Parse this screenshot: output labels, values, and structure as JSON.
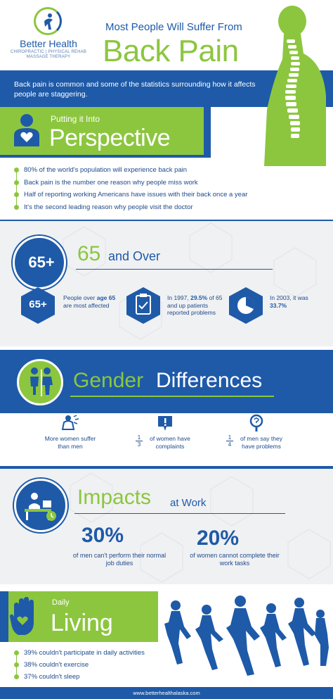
{
  "logo": {
    "name": "Better Health",
    "subtitle": "CHIROPRACTIC | PHYSICAL REHAB MASSAGE THERAPY"
  },
  "header": {
    "title_small": "Most People Will Suffer From",
    "title_big": "Back Pain"
  },
  "intro": {
    "text": "Back pain is common and some of the statistics surrounding how it affects people are staggering."
  },
  "perspective": {
    "small": "Putting it Into",
    "big": "Perspective",
    "items": [
      "80% of the world's population will experience back pain",
      "Back pain is the number one reason why people miss work",
      "Half of reporting working Americans have issues with their back once a year",
      "It's the second leading reason why people visit the doctor"
    ]
  },
  "over65": {
    "badge": "65+",
    "title_num": "65",
    "title_text": "and Over",
    "stat1_badge": "65+",
    "stat1_a": "People over ",
    "stat1_b": "age 65",
    "stat1_c": " are most affected",
    "stat2_a": "In 1997, ",
    "stat2_b": "29.5%",
    "stat2_c": " of 65 and up patients reported problems",
    "stat3_a": "In 2003, it was ",
    "stat3_b": "33.7%"
  },
  "gender": {
    "title_a": "Gender",
    "title_b": "Differences",
    "stat1": "More women suffer than men",
    "stat2_num": "1",
    "stat2_den": "3",
    "stat2": "of women have complaints",
    "stat3_num": "1",
    "stat3_den": "4",
    "stat3": "of men say they have problems"
  },
  "impacts": {
    "title_a": "Impacts",
    "title_b": "at Work",
    "pct1": "30%",
    "desc1": "of men can't perform their normal job duties",
    "pct2": "20%",
    "desc2": "of women cannot complete their work tasks"
  },
  "daily": {
    "small": "Daily",
    "big": "Living",
    "items": [
      "39% couldn't participate in daily activities",
      "38% couldn't exercise",
      "37% couldn't sleep"
    ]
  },
  "footer": {
    "url": "www.betterhealthalaska.com"
  },
  "colors": {
    "blue": "#1e5aa8",
    "green": "#8cc63f",
    "light_gray": "#f0f1f3"
  },
  "icons": [
    "logo-figure-icon",
    "spine-figure-icon",
    "heart-person-icon",
    "clipboard-check-icon",
    "pie-chart-icon",
    "gender-icon",
    "woman-pain-icon",
    "alert-icon",
    "magnifier-icon",
    "desk-worker-icon",
    "hand-heart-icon",
    "runners-silhouette"
  ]
}
